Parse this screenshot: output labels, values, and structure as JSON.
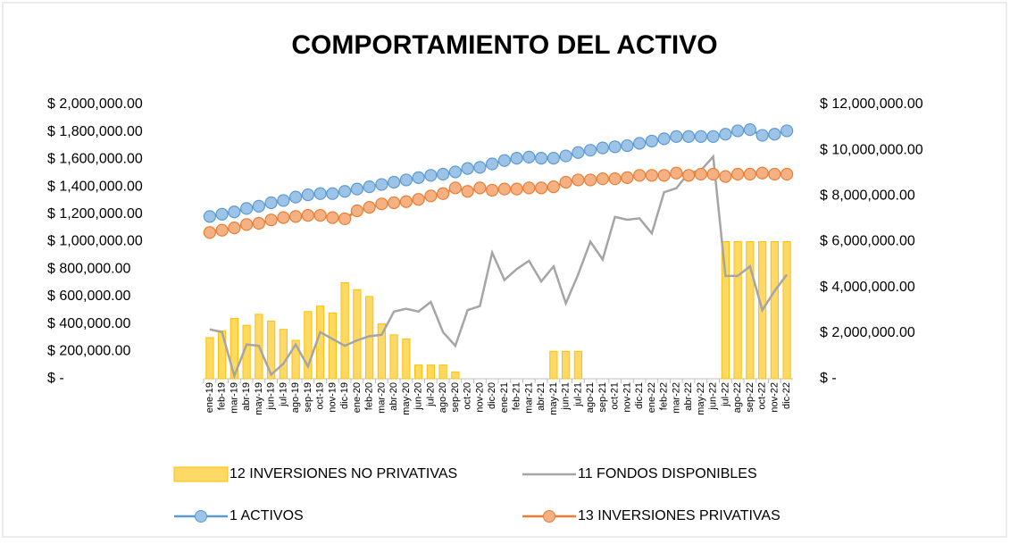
{
  "chart_data": {
    "type": "combo",
    "title": "COMPORTAMIENTO DEL ACTIVO",
    "categories": [
      "ene-19",
      "feb-19",
      "mar-19",
      "abr-19",
      "may-19",
      "jun-19",
      "jul-19",
      "ago-19",
      "sep-19",
      "oct-19",
      "nov-19",
      "dic-19",
      "ene-20",
      "feb-20",
      "mar-20",
      "abr-20",
      "may-20",
      "jun-20",
      "jul-20",
      "ago-20",
      "sep-20",
      "oct-20",
      "nov-20",
      "dic-20",
      "ene-21",
      "feb-21",
      "mar-21",
      "abr-21",
      "may-21",
      "jun-21",
      "jul-21",
      "ago-21",
      "sep-21",
      "oct-21",
      "nov-21",
      "dic-21",
      "ene-22",
      "feb-22",
      "mar-22",
      "abr-22",
      "may-22",
      "jun-22",
      "jul-22",
      "ago-22",
      "sep-22",
      "oct-22",
      "nov-22",
      "dic-22"
    ],
    "series": [
      {
        "name": "12 INVERSIONES NO PRIVATIVAS",
        "type": "bar",
        "axis": "y",
        "color": "#ffd966",
        "values": [
          300000,
          350000,
          440000,
          390000,
          470000,
          420000,
          360000,
          280000,
          490000,
          530000,
          480000,
          700000,
          650000,
          600000,
          400000,
          320000,
          290000,
          100000,
          100000,
          100000,
          50000,
          0,
          0,
          0,
          0,
          0,
          0,
          0,
          200000,
          200000,
          200000,
          0,
          0,
          0,
          0,
          0,
          0,
          0,
          0,
          0,
          0,
          0,
          1000000,
          1000000,
          1000000,
          1000000,
          1000000,
          1000000
        ]
      },
      {
        "name": "11 FONDOS DISPONIBLES",
        "type": "line",
        "axis": "y",
        "color": "#a5a5a5",
        "values": [
          360000,
          340000,
          20000,
          250000,
          240000,
          30000,
          110000,
          250000,
          90000,
          340000,
          290000,
          240000,
          280000,
          310000,
          320000,
          490000,
          510000,
          490000,
          560000,
          340000,
          240000,
          500000,
          530000,
          920000,
          720000,
          800000,
          860000,
          710000,
          820000,
          550000,
          760000,
          1000000,
          870000,
          1180000,
          1160000,
          1170000,
          1060000,
          1360000,
          1390000,
          1500000,
          1520000,
          1620000,
          750000,
          750000,
          820000,
          500000,
          640000,
          760000
        ]
      },
      {
        "name": "1 ACTIVOS",
        "type": "marker-line",
        "axis": "y2",
        "color": "#5b9bd5",
        "values": [
          7100000,
          7200000,
          7300000,
          7450000,
          7550000,
          7700000,
          7800000,
          7950000,
          8050000,
          8100000,
          8100000,
          8200000,
          8300000,
          8400000,
          8500000,
          8600000,
          8700000,
          8800000,
          8900000,
          8950000,
          9050000,
          9200000,
          9250000,
          9400000,
          9550000,
          9650000,
          9700000,
          9650000,
          9650000,
          9750000,
          9900000,
          10000000,
          10100000,
          10150000,
          10200000,
          10300000,
          10400000,
          10500000,
          10600000,
          10600000,
          10600000,
          10600000,
          10700000,
          10850000,
          10900000,
          10650000,
          10700000,
          10850000
        ]
      },
      {
        "name": "13 INVERSIONES PRIVATIVAS",
        "type": "marker-line",
        "axis": "y2",
        "color": "#ed7d31",
        "values": [
          6400000,
          6500000,
          6600000,
          6750000,
          6800000,
          6950000,
          7050000,
          7100000,
          7150000,
          7150000,
          7050000,
          7000000,
          7350000,
          7500000,
          7650000,
          7700000,
          7750000,
          7850000,
          8000000,
          8100000,
          8350000,
          8200000,
          8350000,
          8250000,
          8300000,
          8300000,
          8350000,
          8350000,
          8400000,
          8600000,
          8700000,
          8700000,
          8750000,
          8750000,
          8800000,
          8900000,
          8900000,
          8900000,
          9000000,
          8900000,
          8950000,
          8950000,
          8850000,
          8950000,
          8950000,
          9000000,
          8950000,
          8950000
        ]
      }
    ],
    "ylim": [
      0,
      2000000
    ],
    "yticks": [
      {
        "value": 0,
        "label": "$ -"
      },
      {
        "value": 200000,
        "label": "$ 200,000.00"
      },
      {
        "value": 400000,
        "label": "$ 400,000.00"
      },
      {
        "value": 600000,
        "label": "$ 600,000.00"
      },
      {
        "value": 800000,
        "label": "$ 800,000.00"
      },
      {
        "value": 1000000,
        "label": "$ 1,000,000.00"
      },
      {
        "value": 1200000,
        "label": "$ 1,200,000.00"
      },
      {
        "value": 1400000,
        "label": "$ 1,400,000.00"
      },
      {
        "value": 1600000,
        "label": "$ 1,600,000.00"
      },
      {
        "value": 1800000,
        "label": "$ 1,800,000.00"
      },
      {
        "value": 2000000,
        "label": "$ 2,000,000.00"
      }
    ],
    "y2lim": [
      0,
      12000000
    ],
    "y2ticks": [
      {
        "value": 0,
        "label": "$ -"
      },
      {
        "value": 2000000,
        "label": "$ 2,000,000.00"
      },
      {
        "value": 4000000,
        "label": "$ 4,000,000.00"
      },
      {
        "value": 6000000,
        "label": "$ 6,000,000.00"
      },
      {
        "value": 8000000,
        "label": "$ 8,000,000.00"
      },
      {
        "value": 10000000,
        "label": "$ 10,000,000.00"
      },
      {
        "value": 12000000,
        "label": "$ 12,000,000.00"
      }
    ],
    "grid": false,
    "legend": "bottom"
  }
}
